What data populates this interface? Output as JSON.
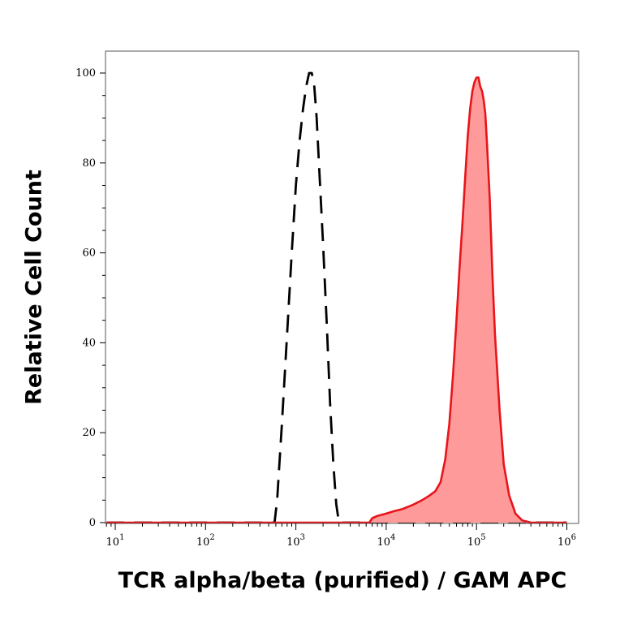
{
  "chart_data": {
    "type": "area",
    "xlabel": "TCR alpha/beta (purified) / GAM APC",
    "ylabel": "Relative Cell Count",
    "x_scale": "log",
    "xlim": [
      10,
      1000000
    ],
    "ylim": [
      0,
      100
    ],
    "x_ticks": [
      {
        "value": 10,
        "base": "10",
        "exp": "1"
      },
      {
        "value": 100,
        "base": "10",
        "exp": "2"
      },
      {
        "value": 1000,
        "base": "10",
        "exp": "3"
      },
      {
        "value": 10000,
        "base": "10",
        "exp": "4"
      },
      {
        "value": 100000,
        "base": "10",
        "exp": "5"
      },
      {
        "value": 1000000,
        "base": "10",
        "exp": "6"
      }
    ],
    "y_ticks": [
      0,
      20,
      40,
      60,
      80,
      100
    ],
    "grid": false,
    "legend": "none",
    "series": [
      {
        "style": "dashed-black-outline",
        "color": "#000000",
        "x": [
          8,
          580,
          620,
          700,
          800,
          900,
          1000,
          1100,
          1200,
          1300,
          1400,
          1500,
          1600,
          1700,
          1800,
          2000,
          2200,
          2400,
          2600,
          2800,
          3000,
          1000000
        ],
        "y": [
          0,
          0,
          5,
          22,
          42,
          60,
          75,
          85,
          92,
          97,
          100,
          100,
          97,
          90,
          80,
          62,
          44,
          26,
          13,
          4,
          0,
          0
        ]
      },
      {
        "style": "red-filled",
        "color": "#e8141b",
        "fill": "#ff9a9a",
        "x": [
          8,
          6500,
          7000,
          8000,
          10000,
          12000,
          15000,
          20000,
          25000,
          30000,
          35000,
          40000,
          45000,
          50000,
          55000,
          60000,
          65000,
          70000,
          75000,
          80000,
          85000,
          90000,
          95000,
          100000,
          105000,
          110000,
          115000,
          120000,
          125000,
          130000,
          140000,
          150000,
          160000,
          180000,
          200000,
          230000,
          270000,
          320000,
          400000,
          1000000
        ],
        "y": [
          0,
          0,
          1,
          1.5,
          2,
          2.5,
          3,
          4,
          5,
          6,
          7,
          9,
          14,
          22,
          33,
          45,
          57,
          67,
          77,
          86,
          92,
          96,
          98,
          99,
          99,
          97,
          96,
          94,
          91,
          85,
          72,
          55,
          42,
          25,
          13,
          6,
          2,
          0.5,
          0,
          0
        ]
      }
    ]
  }
}
